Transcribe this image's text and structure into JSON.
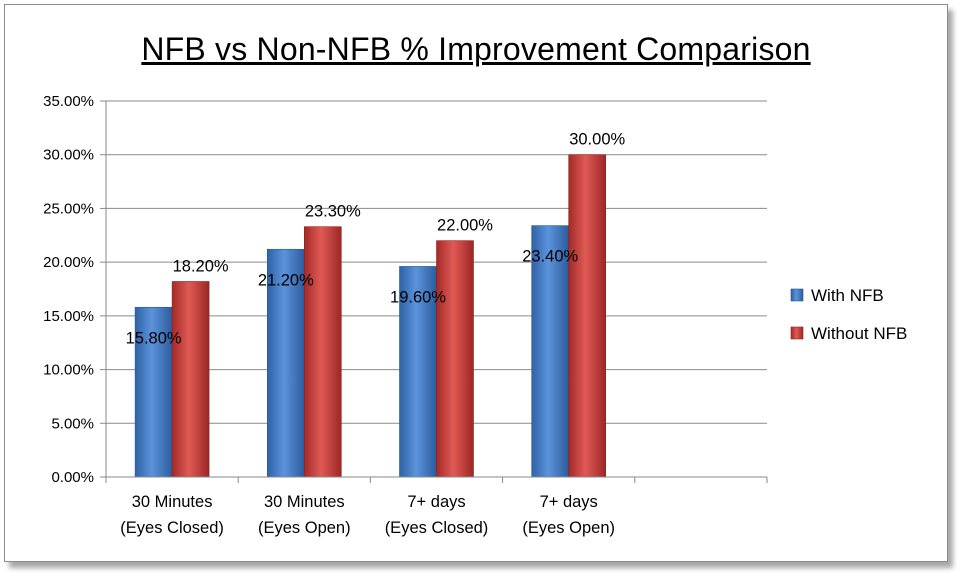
{
  "chart_data": {
    "type": "bar",
    "title": "NFB vs Non-NFB % Improvement Comparison",
    "categories": [
      [
        "30 Minutes",
        "(Eyes Closed)"
      ],
      [
        "30 Minutes",
        "(Eyes Open)"
      ],
      [
        "7+ days",
        "(Eyes Closed)"
      ],
      [
        "7+ days",
        "(Eyes Open)"
      ]
    ],
    "series": [
      {
        "name": "With NFB",
        "values": [
          15.8,
          21.2,
          19.6,
          23.4
        ],
        "labels": [
          "15.80%",
          "21.20%",
          "19.60%",
          "23.40%"
        ],
        "color": "#4a7ebb"
      },
      {
        "name": "Without NFB",
        "values": [
          18.2,
          23.3,
          22.0,
          30.0
        ],
        "labels": [
          "18.20%",
          "23.30%",
          "22.00%",
          "30.00%"
        ],
        "color": "#be4b48"
      }
    ],
    "yticks": [
      "0.00%",
      "5.00%",
      "10.00%",
      "15.00%",
      "20.00%",
      "25.00%",
      "30.00%",
      "35.00%"
    ],
    "ylim": [
      0,
      35
    ],
    "grid": true,
    "legend_position": "right"
  }
}
